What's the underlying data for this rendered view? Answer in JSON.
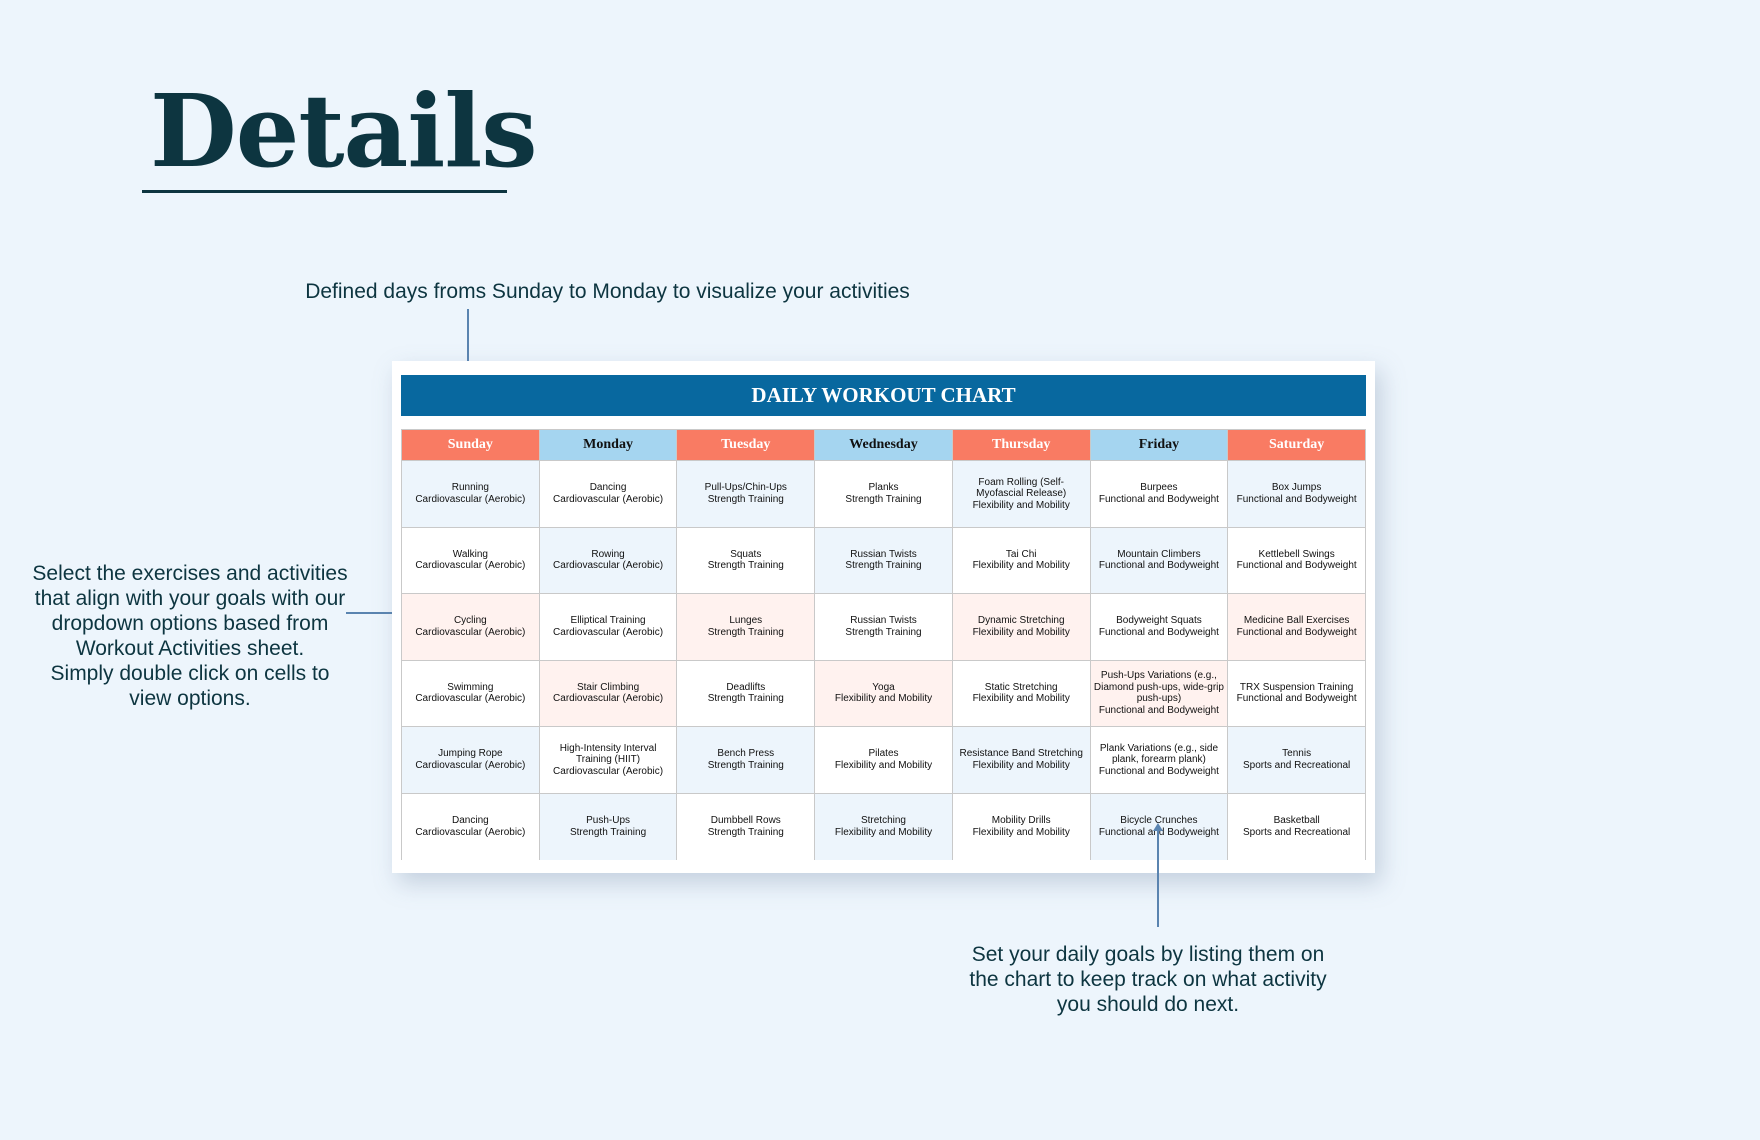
{
  "page": {
    "title": "Details"
  },
  "annotations": {
    "top": "Defined days froms Sunday to Monday to visualize your activities",
    "left": [
      "Select the exercises and activities",
      "that align with your goals with our",
      "dropdown options based from",
      "Workout Activities sheet.",
      "Simply double click on cells to",
      "view options."
    ],
    "bottom": [
      "Set your daily goals by listing them on",
      "the chart to keep track on what activity",
      "you should do next."
    ]
  },
  "chart": {
    "title": "DAILY WORKOUT CHART",
    "days": [
      "Sunday",
      "Monday",
      "Tuesday",
      "Wednesday",
      "Thursday",
      "Friday",
      "Saturday"
    ],
    "colors": {
      "title_bar": "#08689f",
      "header_coral": "#f97b63",
      "header_blue": "#a5d5f0",
      "cell_blue": "#edf5fc",
      "cell_pink": "#fff2ef"
    },
    "rows": [
      [
        [
          "Running",
          "Cardiovascular (Aerobic)"
        ],
        [
          "Dancing",
          "Cardiovascular (Aerobic)"
        ],
        [
          "Pull-Ups/Chin-Ups",
          "Strength Training"
        ],
        [
          "Planks",
          "Strength Training"
        ],
        [
          "Foam Rolling (Self-Myofascial Release)",
          "Flexibility and Mobility"
        ],
        [
          "Burpees",
          "Functional and Bodyweight"
        ],
        [
          "Box Jumps",
          "Functional and Bodyweight"
        ]
      ],
      [
        [
          "Walking",
          "Cardiovascular (Aerobic)"
        ],
        [
          "Rowing",
          "Cardiovascular (Aerobic)"
        ],
        [
          "Squats",
          "Strength Training"
        ],
        [
          "Russian Twists",
          "Strength Training"
        ],
        [
          "Tai Chi",
          "Flexibility and Mobility"
        ],
        [
          "Mountain Climbers",
          "Functional and Bodyweight"
        ],
        [
          "Kettlebell Swings",
          "Functional and Bodyweight"
        ]
      ],
      [
        [
          "Cycling",
          "Cardiovascular (Aerobic)"
        ],
        [
          "Elliptical Training",
          "Cardiovascular (Aerobic)"
        ],
        [
          "Lunges",
          "Strength Training"
        ],
        [
          "Russian Twists",
          "Strength Training"
        ],
        [
          "Dynamic Stretching",
          "Flexibility and Mobility"
        ],
        [
          "Bodyweight Squats",
          "Functional and Bodyweight"
        ],
        [
          "Medicine Ball Exercises",
          "Functional and Bodyweight"
        ]
      ],
      [
        [
          "Swimming",
          "Cardiovascular (Aerobic)"
        ],
        [
          "Stair Climbing",
          "Cardiovascular (Aerobic)"
        ],
        [
          "Deadlifts",
          "Strength Training"
        ],
        [
          "Yoga",
          "Flexibility and Mobility"
        ],
        [
          "Static Stretching",
          "Flexibility and Mobility"
        ],
        [
          "Push-Ups Variations (e.g., Diamond push-ups, wide-grip push-ups)",
          "Functional and Bodyweight"
        ],
        [
          "TRX Suspension Training",
          "Functional and Bodyweight"
        ]
      ],
      [
        [
          "Jumping Rope",
          "Cardiovascular (Aerobic)"
        ],
        [
          "High-Intensity Interval Training (HIIT)",
          "Cardiovascular (Aerobic)"
        ],
        [
          "Bench Press",
          "Strength Training"
        ],
        [
          "Pilates",
          "Flexibility and Mobility"
        ],
        [
          "Resistance Band Stretching",
          "Flexibility and Mobility"
        ],
        [
          "Plank Variations (e.g., side plank, forearm plank)",
          "Functional and Bodyweight"
        ],
        [
          "Tennis",
          "Sports and Recreational"
        ]
      ],
      [
        [
          "Dancing",
          "Cardiovascular (Aerobic)"
        ],
        [
          "Push-Ups",
          "Strength Training"
        ],
        [
          "Dumbbell Rows",
          "Strength Training"
        ],
        [
          "Stretching",
          "Flexibility and Mobility"
        ],
        [
          "Mobility Drills",
          "Flexibility and Mobility"
        ],
        [
          "Bicycle Crunches",
          "Functional and Bodyweight"
        ],
        [
          "Basketball",
          "Sports and Recreational"
        ]
      ]
    ]
  }
}
